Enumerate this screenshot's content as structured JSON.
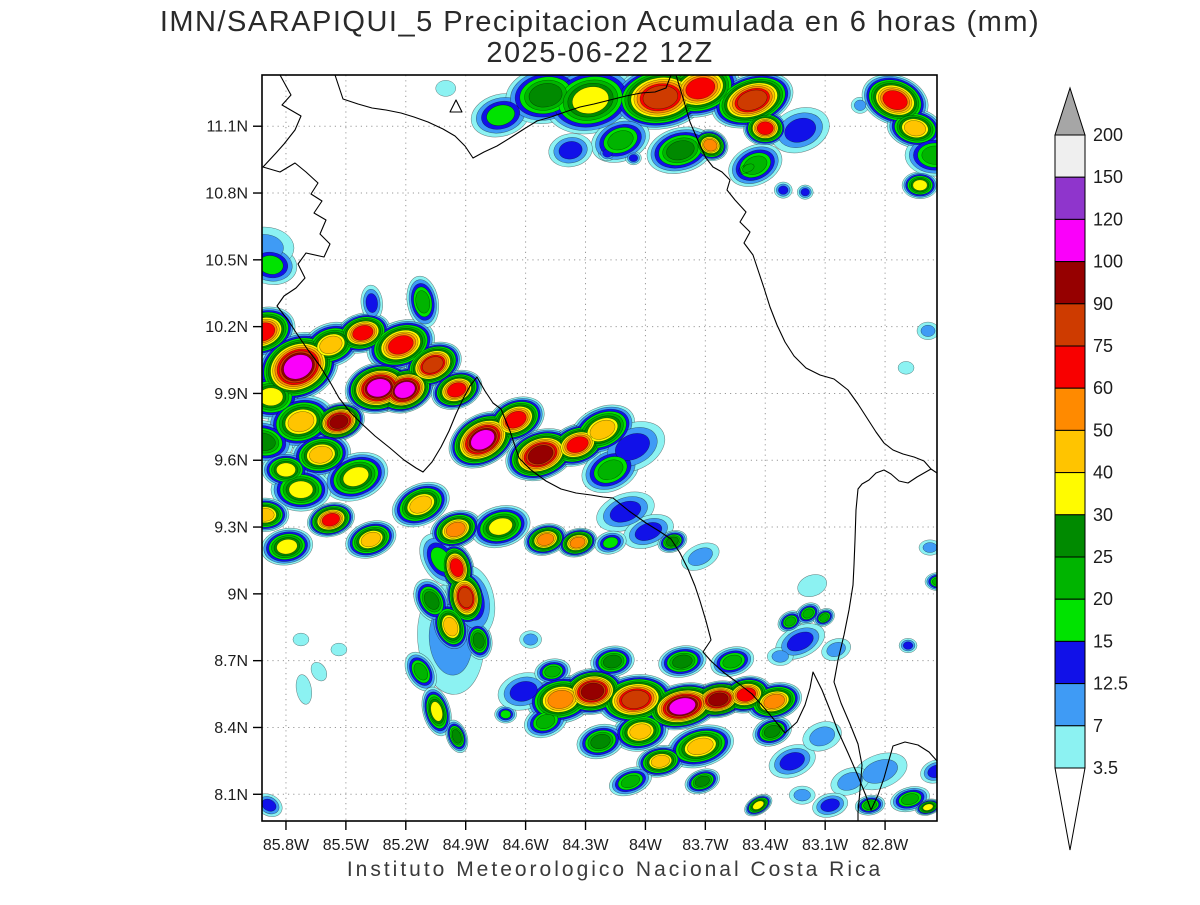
{
  "title": {
    "line1": "IMN/SARAPIQUI_5 Precipitacion Acumulada en 6 horas (mm)",
    "line2": "2025-06-22 12Z"
  },
  "footer": "Instituto Meteorologico Nacional Costa Rica",
  "axes": {
    "lat_ticks": [
      {
        "label": "11.1N",
        "value": 11.1
      },
      {
        "label": "10.8N",
        "value": 10.8
      },
      {
        "label": "10.5N",
        "value": 10.5
      },
      {
        "label": "10.2N",
        "value": 10.2
      },
      {
        "label": "9.9N",
        "value": 9.9
      },
      {
        "label": "9.6N",
        "value": 9.6
      },
      {
        "label": "9.3N",
        "value": 9.3
      },
      {
        "label": "9N",
        "value": 9.0
      },
      {
        "label": "8.7N",
        "value": 8.7
      },
      {
        "label": "8.4N",
        "value": 8.4
      },
      {
        "label": "8.1N",
        "value": 8.1
      }
    ],
    "lon_ticks": [
      {
        "label": "85.8W",
        "value": 85.8
      },
      {
        "label": "85.5W",
        "value": 85.5
      },
      {
        "label": "85.2W",
        "value": 85.2
      },
      {
        "label": "84.9W",
        "value": 84.9
      },
      {
        "label": "84.6W",
        "value": 84.6
      },
      {
        "label": "84.3W",
        "value": 84.3
      },
      {
        "label": "84W",
        "value": 84.0
      },
      {
        "label": "83.7W",
        "value": 83.7
      },
      {
        "label": "83.4W",
        "value": 83.4
      },
      {
        "label": "83.1W",
        "value": 83.1
      },
      {
        "label": "82.8W",
        "value": 82.8
      }
    ],
    "lon_range": [
      85.92,
      82.54
    ],
    "lat_range": [
      7.98,
      11.33
    ]
  },
  "colorbar": {
    "units": "mm",
    "levels": [
      3.5,
      7,
      12.5,
      15,
      20,
      25,
      30,
      40,
      50,
      60,
      75,
      90,
      100,
      120,
      150,
      200
    ],
    "colors": [
      "#8CF2F2",
      "#3F9BF5",
      "#1111E8",
      "#00E300",
      "#00B400",
      "#008A00",
      "#FFFB00",
      "#FFC400",
      "#FF8A00",
      "#F80000",
      "#CE3B00",
      "#960000",
      "#FA00FA",
      "#8F35CC",
      "#EFEFEF",
      "#A6A6A6"
    ],
    "below_color": "#FFFFFF"
  },
  "precipitation": {
    "units": "mm",
    "cell_fields": [
      "lon_w",
      "lat_n",
      "peak_mm",
      "radius",
      "aspect",
      "rot_deg"
    ],
    "cells": [
      [
        84.725,
        11.149,
        15,
        30,
        0.7,
        -15
      ],
      [
        84.5,
        11.239,
        25,
        40,
        0.7,
        -10
      ],
      [
        84.275,
        11.217,
        30,
        46,
        0.72,
        -12
      ],
      [
        83.925,
        11.23,
        75,
        48,
        0.66,
        -8
      ],
      [
        83.725,
        11.27,
        60,
        40,
        0.7,
        -15
      ],
      [
        83.465,
        11.217,
        75,
        42,
        0.62,
        -18
      ],
      [
        83.4,
        11.091,
        60,
        22,
        0.8,
        0
      ],
      [
        83.675,
        11.015,
        50,
        18,
        0.85,
        20
      ],
      [
        84.125,
        11.037,
        20,
        30,
        0.7,
        -20
      ],
      [
        83.825,
        10.992,
        25,
        34,
        0.66,
        -15
      ],
      [
        83.45,
        10.925,
        20,
        28,
        0.7,
        -25
      ],
      [
        83.225,
        11.082,
        12.5,
        30,
        0.72,
        -20
      ],
      [
        84.375,
        10.992,
        12.5,
        22,
        0.75,
        -10
      ],
      [
        84.19,
        10.979,
        12.5,
        9,
        0.85,
        0
      ],
      [
        84.06,
        10.957,
        12.5,
        8,
        0.85,
        0
      ],
      [
        83.875,
        10.934,
        3.5,
        8,
        0.9,
        0
      ],
      [
        83.485,
        10.912,
        20,
        14,
        0.6,
        -25
      ],
      [
        83.31,
        10.813,
        12.5,
        9,
        0.9,
        0
      ],
      [
        83.2,
        10.804,
        12.5,
        8,
        0.9,
        0
      ],
      [
        82.925,
        11.194,
        7,
        9,
        0.9,
        0
      ],
      [
        85.0,
        11.27,
        3.5,
        10,
        0.8,
        0
      ],
      [
        82.75,
        11.217,
        60,
        34,
        0.72,
        20
      ],
      [
        82.65,
        11.091,
        40,
        28,
        0.7,
        10
      ],
      [
        82.625,
        10.835,
        30,
        18,
        0.75,
        0
      ],
      [
        82.55,
        10.97,
        20,
        30,
        0.7,
        0
      ],
      [
        85.875,
        10.477,
        15,
        26,
        0.75,
        10
      ],
      [
        85.91,
        10.553,
        7,
        30,
        0.7,
        0
      ],
      [
        85.915,
        10.176,
        60,
        33,
        0.72,
        -20
      ],
      [
        85.74,
        10.019,
        100,
        42,
        0.78,
        -25
      ],
      [
        85.875,
        9.885,
        30,
        30,
        0.75,
        0
      ],
      [
        85.725,
        9.773,
        40,
        34,
        0.75,
        -15
      ],
      [
        85.575,
        10.118,
        40,
        30,
        0.72,
        -20
      ],
      [
        85.415,
        10.172,
        60,
        28,
        0.7,
        -15
      ],
      [
        85.225,
        10.118,
        60,
        35,
        0.68,
        -20
      ],
      [
        85.335,
        9.925,
        100,
        34,
        0.74,
        -12
      ],
      [
        85.205,
        9.916,
        100,
        30,
        0.74,
        -20
      ],
      [
        85.065,
        10.028,
        75,
        30,
        0.7,
        -25
      ],
      [
        84.945,
        9.916,
        60,
        26,
        0.72,
        -20
      ],
      [
        84.815,
        9.692,
        100,
        36,
        0.7,
        -30
      ],
      [
        84.65,
        9.782,
        60,
        30,
        0.7,
        -25
      ],
      [
        84.525,
        9.625,
        90,
        36,
        0.68,
        -20
      ],
      [
        84.34,
        9.67,
        60,
        30,
        0.68,
        -20
      ],
      [
        84.215,
        9.737,
        40,
        34,
        0.66,
        -25
      ],
      [
        85.535,
        9.773,
        90,
        26,
        0.72,
        -15
      ],
      [
        85.625,
        9.625,
        40,
        30,
        0.72,
        -10
      ],
      [
        85.45,
        9.526,
        30,
        33,
        0.7,
        -20
      ],
      [
        85.725,
        9.468,
        30,
        30,
        0.72,
        0
      ],
      [
        85.575,
        9.333,
        60,
        24,
        0.7,
        -15
      ],
      [
        85.375,
        9.244,
        40,
        26,
        0.68,
        -20
      ],
      [
        85.125,
        9.401,
        40,
        30,
        0.68,
        -25
      ],
      [
        84.95,
        9.289,
        50,
        26,
        0.7,
        -20
      ],
      [
        84.725,
        9.302,
        30,
        30,
        0.68,
        -15
      ],
      [
        84.5,
        9.244,
        50,
        22,
        0.7,
        -15
      ],
      [
        84.34,
        9.23,
        50,
        20,
        0.7,
        -15
      ],
      [
        84.175,
        9.557,
        20,
        30,
        0.7,
        -25
      ],
      [
        84.065,
        9.66,
        12.5,
        34,
        0.68,
        -25
      ],
      [
        85.115,
        10.311,
        20,
        26,
        0.6,
        80
      ],
      [
        85.37,
        10.306,
        12.5,
        18,
        0.6,
        85
      ],
      [
        85.915,
        9.683,
        25,
        30,
        0.7,
        10
      ],
      [
        85.8,
        9.557,
        30,
        24,
        0.72,
        0
      ],
      [
        85.905,
        9.355,
        40,
        24,
        0.7,
        0
      ],
      [
        85.795,
        9.212,
        30,
        26,
        0.7,
        -10
      ],
      [
        84.1,
        9.369,
        12.5,
        30,
        0.6,
        -20
      ],
      [
        83.985,
        9.28,
        12.5,
        26,
        0.6,
        -20
      ],
      [
        83.865,
        9.235,
        25,
        15,
        0.7,
        -20
      ],
      [
        83.725,
        9.167,
        7,
        20,
        0.6,
        -25
      ],
      [
        84.175,
        9.23,
        15,
        16,
        0.7,
        -15
      ],
      [
        84.975,
        8.795,
        7,
        55,
        0.6,
        85
      ],
      [
        84.945,
        9.118,
        60,
        25,
        0.68,
        75
      ],
      [
        84.9,
        8.983,
        75,
        28,
        0.7,
        80
      ],
      [
        84.975,
        8.853,
        40,
        25,
        0.7,
        70
      ],
      [
        85.07,
        8.97,
        25,
        23,
        0.7,
        60
      ],
      [
        84.835,
        8.79,
        25,
        19,
        0.7,
        80
      ],
      [
        85.125,
        8.651,
        20,
        21,
        0.65,
        60
      ],
      [
        85.045,
        8.472,
        30,
        25,
        0.55,
        75
      ],
      [
        84.945,
        8.36,
        25,
        17,
        0.6,
        70
      ],
      [
        84.865,
        8.966,
        12.5,
        36,
        0.6,
        80
      ],
      [
        85.025,
        9.154,
        15,
        28,
        0.65,
        60
      ],
      [
        85.71,
        8.571,
        3.5,
        15,
        0.5,
        80
      ],
      [
        85.635,
        8.651,
        3.5,
        10,
        0.7,
        60
      ],
      [
        85.535,
        8.75,
        3.5,
        8,
        0.8,
        0
      ],
      [
        85.725,
        8.795,
        3.5,
        8,
        0.8,
        0
      ],
      [
        84.575,
        8.795,
        7,
        11,
        0.8,
        0
      ],
      [
        84.7,
        8.459,
        15,
        11,
        0.8,
        0
      ],
      [
        84.425,
        8.526,
        50,
        34,
        0.7,
        -10
      ],
      [
        84.265,
        8.562,
        90,
        32,
        0.72,
        -8
      ],
      [
        84.05,
        8.526,
        75,
        38,
        0.65,
        -8
      ],
      [
        83.815,
        8.495,
        100,
        38,
        0.6,
        -12
      ],
      [
        83.635,
        8.526,
        90,
        28,
        0.65,
        -10
      ],
      [
        83.495,
        8.548,
        60,
        26,
        0.7,
        -12
      ],
      [
        83.355,
        8.517,
        50,
        28,
        0.65,
        -15
      ],
      [
        83.725,
        8.315,
        40,
        34,
        0.6,
        -15
      ],
      [
        83.925,
        8.248,
        40,
        24,
        0.65,
        -10
      ],
      [
        84.025,
        8.382,
        40,
        28,
        0.7,
        -10
      ],
      [
        84.225,
        8.337,
        25,
        24,
        0.7,
        -15
      ],
      [
        84.5,
        8.427,
        20,
        22,
        0.7,
        -20
      ],
      [
        84.61,
        8.562,
        12.5,
        26,
        0.7,
        -15
      ],
      [
        84.075,
        8.158,
        20,
        22,
        0.6,
        -20
      ],
      [
        83.715,
        8.158,
        25,
        18,
        0.65,
        -20
      ],
      [
        83.435,
        8.051,
        30,
        15,
        0.6,
        -30
      ],
      [
        83.265,
        8.248,
        12.5,
        24,
        0.65,
        -20
      ],
      [
        83.115,
        8.36,
        7,
        20,
        0.7,
        -20
      ],
      [
        84.465,
        8.651,
        20,
        18,
        0.7,
        -10
      ],
      [
        84.165,
        8.696,
        25,
        22,
        0.7,
        -10
      ],
      [
        83.815,
        8.696,
        25,
        24,
        0.65,
        -10
      ],
      [
        83.565,
        8.696,
        20,
        22,
        0.65,
        -15
      ],
      [
        83.365,
        8.382,
        25,
        20,
        0.7,
        -20
      ],
      [
        83.275,
        8.876,
        20,
        13,
        0.75,
        -30
      ],
      [
        83.185,
        8.912,
        20,
        13,
        0.75,
        -30
      ],
      [
        83.105,
        8.894,
        20,
        11,
        0.75,
        -30
      ],
      [
        83.225,
        8.786,
        12.5,
        26,
        0.6,
        -25
      ],
      [
        83.045,
        8.75,
        7,
        15,
        0.7,
        -20
      ],
      [
        83.325,
        8.719,
        7,
        13,
        0.7,
        0
      ],
      [
        83.165,
        9.037,
        3.5,
        15,
        0.7,
        -20
      ],
      [
        82.825,
        8.203,
        7,
        28,
        0.6,
        -20
      ],
      [
        82.675,
        8.078,
        20,
        20,
        0.6,
        -15
      ],
      [
        82.585,
        8.042,
        30,
        13,
        0.6,
        -15
      ],
      [
        82.875,
        8.051,
        20,
        15,
        0.65,
        -10
      ],
      [
        82.975,
        8.158,
        7,
        20,
        0.65,
        -20
      ],
      [
        82.545,
        8.203,
        12.5,
        16,
        0.7,
        -20
      ],
      [
        83.075,
        8.051,
        12.5,
        18,
        0.65,
        -15
      ],
      [
        83.215,
        8.096,
        7,
        13,
        0.7,
        0
      ],
      [
        85.885,
        8.051,
        12.5,
        14,
        0.75,
        30
      ],
      [
        82.585,
        10.181,
        7,
        11,
        0.8,
        0
      ],
      [
        82.695,
        10.015,
        3.5,
        8,
        0.8,
        0
      ],
      [
        82.535,
        9.055,
        20,
        13,
        0.7,
        0
      ],
      [
        82.575,
        9.208,
        7,
        11,
        0.7,
        0
      ],
      [
        82.685,
        8.768,
        12.5,
        9,
        0.8,
        0
      ]
    ]
  }
}
